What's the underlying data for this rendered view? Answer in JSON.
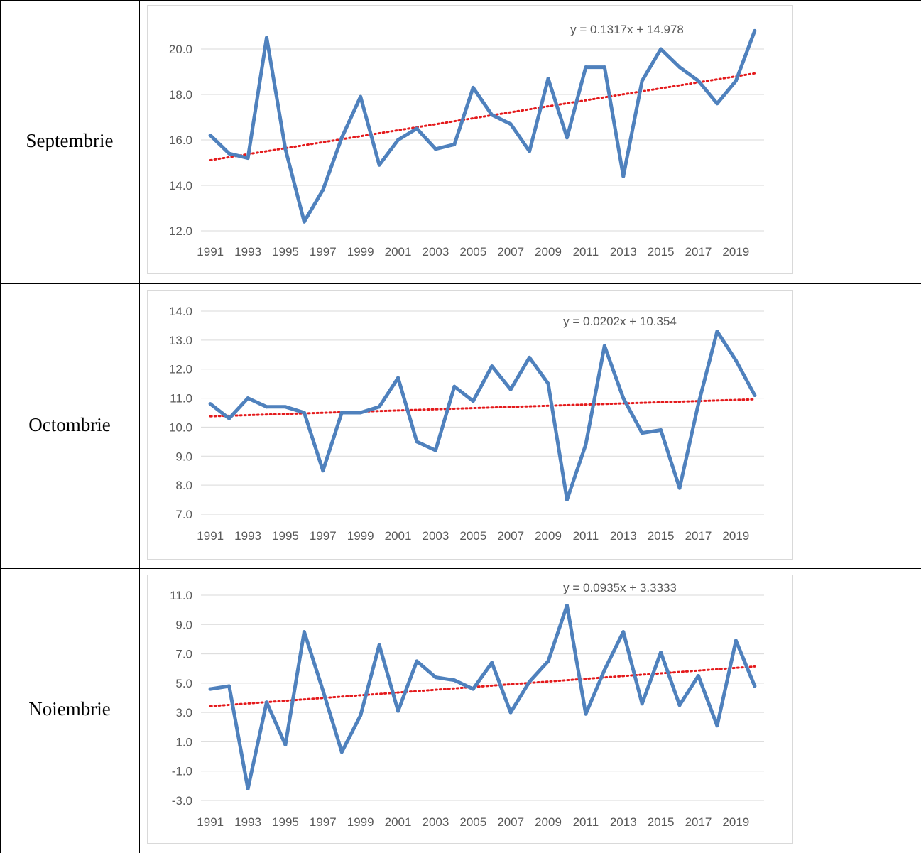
{
  "rows": [
    {
      "label": "Septembrie"
    },
    {
      "label": "Octombrie"
    },
    {
      "label": "Noiembrie"
    }
  ],
  "colors": {
    "series": "#4f81bd",
    "trendline": "#e41a1c",
    "gridline": "#d9d9d9",
    "tick_text": "#595959",
    "table_border": "#000000"
  },
  "chart_data": [
    {
      "type": "line",
      "title": "",
      "xlabel": "",
      "ylabel": "",
      "x": [
        1991,
        1992,
        1993,
        1994,
        1995,
        1996,
        1997,
        1998,
        1999,
        2000,
        2001,
        2002,
        2003,
        2004,
        2005,
        2006,
        2007,
        2008,
        2009,
        2010,
        2011,
        2012,
        2013,
        2014,
        2015,
        2016,
        2017,
        2018,
        2019,
        2020
      ],
      "x_tick_labels": [
        "1991",
        "1993",
        "1995",
        "1997",
        "1999",
        "2001",
        "2003",
        "2005",
        "2007",
        "2009",
        "2011",
        "2013",
        "2015",
        "2017",
        "2019"
      ],
      "ylim": [
        12,
        20
      ],
      "y_ticks": [
        "12.0",
        "14.0",
        "16.0",
        "18.0",
        "20.0"
      ],
      "series": [
        {
          "values": [
            16.2,
            15.4,
            15.2,
            20.5,
            15.6,
            12.4,
            13.8,
            16.1,
            17.9,
            14.9,
            16.0,
            16.5,
            15.6,
            15.8,
            18.3,
            17.1,
            16.7,
            15.5,
            18.7,
            16.1,
            19.2,
            19.2,
            14.4,
            18.6,
            20.0,
            19.2,
            18.6,
            17.6,
            18.6,
            20.8
          ]
        }
      ],
      "trendline": {
        "slope": 0.1317,
        "intercept": 14.978,
        "equation": "y = 0.1317x + 14.978"
      },
      "grid": true
    },
    {
      "type": "line",
      "title": "",
      "xlabel": "",
      "ylabel": "",
      "x": [
        1991,
        1992,
        1993,
        1994,
        1995,
        1996,
        1997,
        1998,
        1999,
        2000,
        2001,
        2002,
        2003,
        2004,
        2005,
        2006,
        2007,
        2008,
        2009,
        2010,
        2011,
        2012,
        2013,
        2014,
        2015,
        2016,
        2017,
        2018,
        2019,
        2020
      ],
      "x_tick_labels": [
        "1991",
        "1993",
        "1995",
        "1997",
        "1999",
        "2001",
        "2003",
        "2005",
        "2007",
        "2009",
        "2011",
        "2013",
        "2015",
        "2017",
        "2019"
      ],
      "ylim": [
        7,
        14
      ],
      "y_ticks": [
        "7.0",
        "8.0",
        "9.0",
        "10.0",
        "11.0",
        "12.0",
        "13.0",
        "14.0"
      ],
      "series": [
        {
          "values": [
            10.8,
            10.3,
            11.0,
            10.7,
            10.7,
            10.5,
            8.5,
            10.5,
            10.5,
            10.7,
            11.7,
            9.5,
            9.2,
            11.4,
            10.9,
            12.1,
            11.3,
            12.4,
            11.5,
            7.5,
            9.4,
            12.8,
            11.0,
            9.8,
            9.9,
            7.9,
            10.8,
            13.3,
            12.3,
            11.1
          ]
        }
      ],
      "trendline": {
        "slope": 0.0202,
        "intercept": 10.354,
        "equation": "y = 0.0202x + 10.354"
      },
      "grid": true
    },
    {
      "type": "line",
      "title": "",
      "xlabel": "",
      "ylabel": "",
      "x": [
        1991,
        1992,
        1993,
        1994,
        1995,
        1996,
        1997,
        1998,
        1999,
        2000,
        2001,
        2002,
        2003,
        2004,
        2005,
        2006,
        2007,
        2008,
        2009,
        2010,
        2011,
        2012,
        2013,
        2014,
        2015,
        2016,
        2017,
        2018,
        2019,
        2020
      ],
      "x_tick_labels": [
        "1991",
        "1993",
        "1995",
        "1997",
        "1999",
        "2001",
        "2003",
        "2005",
        "2007",
        "2009",
        "2011",
        "2013",
        "2015",
        "2017",
        "2019"
      ],
      "ylim": [
        -3,
        11
      ],
      "y_ticks": [
        "-3.0",
        "-1.0",
        "1.0",
        "3.0",
        "5.0",
        "7.0",
        "9.0",
        "11.0"
      ],
      "series": [
        {
          "values": [
            4.6,
            4.8,
            -2.2,
            3.7,
            0.8,
            8.5,
            4.5,
            0.3,
            2.8,
            7.6,
            3.1,
            6.5,
            5.4,
            5.2,
            4.6,
            6.4,
            3.0,
            5.1,
            6.5,
            10.3,
            2.9,
            5.9,
            8.5,
            3.6,
            7.1,
            3.5,
            5.5,
            2.1,
            7.9,
            4.8
          ]
        }
      ],
      "trendline": {
        "slope": 0.0935,
        "intercept": 3.3333,
        "equation": "y = 0.0935x + 3.3333"
      },
      "grid": true
    }
  ]
}
